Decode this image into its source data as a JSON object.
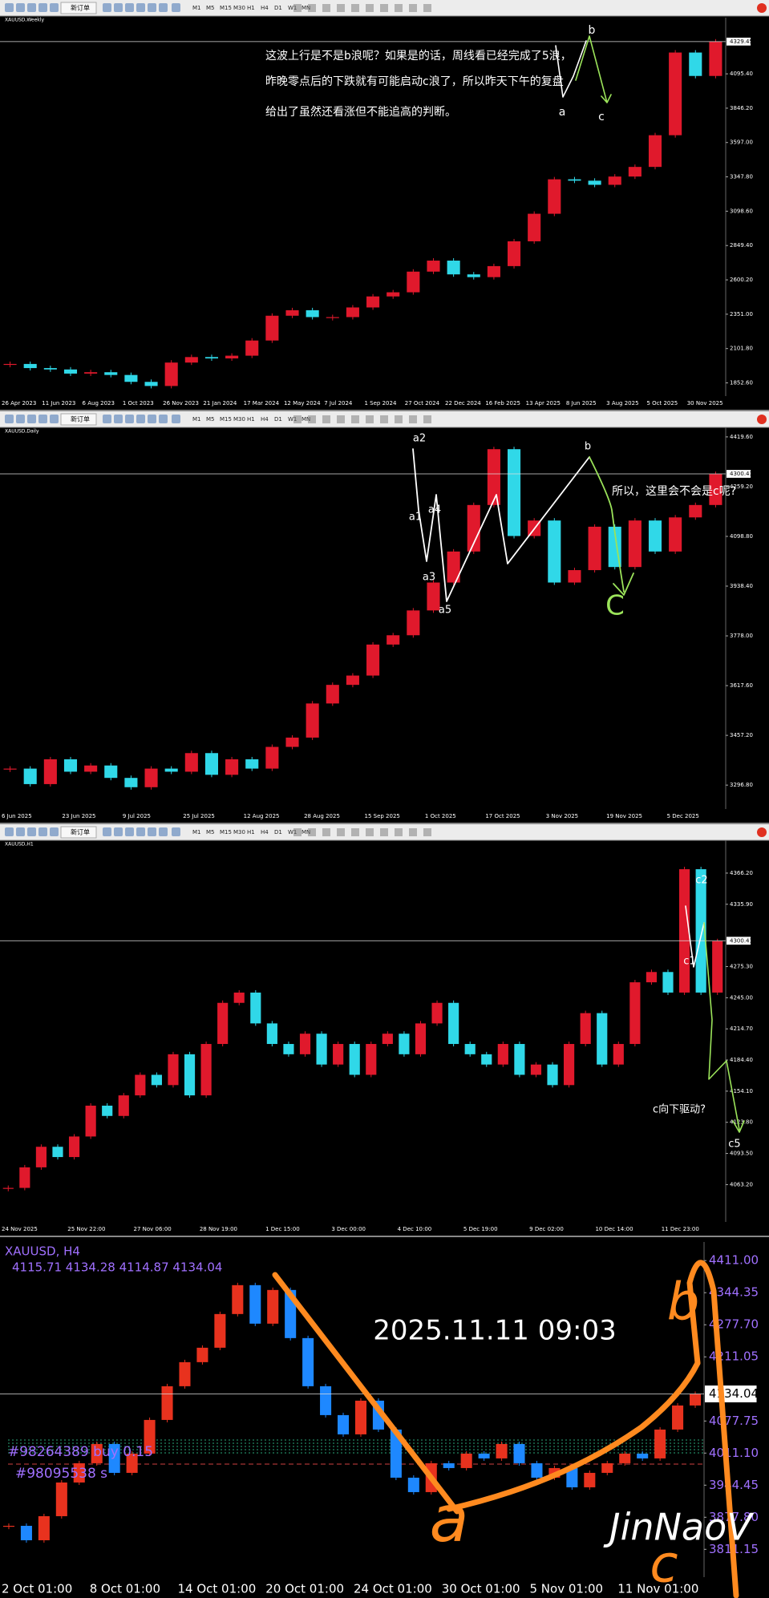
{
  "toolbar": {
    "new_order": "新订单",
    "timeframes": [
      "M1",
      "M5",
      "M15",
      "M30",
      "H1",
      "H4",
      "D1",
      "W1",
      "MN"
    ]
  },
  "chart_data": [
    {
      "type": "candlestick",
      "title": "XAUUSD,Weekly",
      "up_color": "#e0192c",
      "down_color": "#30d8e8",
      "categories": [
        "26 Apr 2023",
        null,
        "11 Jun 2023",
        null,
        "6 Aug 2023",
        null,
        "1 Oct 2023",
        null,
        "26 Nov 2023",
        null,
        "21 Jan 2024",
        null,
        "17 Mar 2024",
        null,
        "12 May 2024",
        null,
        "7 Jul 2024",
        null,
        "1 Sep 2024",
        null,
        "27 Oct 2024",
        null,
        "22 Dec 2024",
        null,
        "16 Feb 2025",
        null,
        "13 Apr 2025",
        null,
        "8 Jun 2025",
        null,
        "3 Aug 2025",
        null,
        "5 Oct 2025",
        null,
        "30 Nov 2025",
        null
      ],
      "values": [
        1990,
        1960,
        1950,
        1920,
        1930,
        1910,
        1860,
        1830,
        2000,
        2040,
        2030,
        2050,
        2160,
        2340,
        2380,
        2330,
        2330,
        2400,
        2480,
        2510,
        2660,
        2740,
        2640,
        2620,
        2700,
        2880,
        3080,
        3330,
        3320,
        3290,
        3350,
        3420,
        3650,
        4250,
        4080,
        4330
      ],
      "ylim": [
        1780,
        4480
      ],
      "yticks": [
        {
          "value": 1852.6,
          "label": "1852.60"
        },
        {
          "value": 2101.8,
          "label": "2101.80"
        },
        {
          "value": 2351,
          "label": "2351.00"
        },
        {
          "value": 2600.2,
          "label": "2600.20"
        },
        {
          "value": 2849.4,
          "label": "2849.40"
        },
        {
          "value": 3098.6,
          "label": "3098.60"
        },
        {
          "value": 3347.8,
          "label": "3347.80"
        },
        {
          "value": 3597,
          "label": "3597.00"
        },
        {
          "value": 3846.2,
          "label": "3846.20"
        },
        {
          "value": 4095.4,
          "label": "4095.40"
        }
      ],
      "price_line": {
        "value": 4329.45,
        "label": "4329.45"
      },
      "annotations": [
        "这波上行是不是b浪呢？如果是的话，周线看已经完成了5浪，",
        "昨晚零点后的下跌就有可能启动c浪了，所以昨天下午的复盘",
        "给出了虽然还看涨但不能追高的判断。",
        "a",
        "b",
        "c"
      ]
    },
    {
      "type": "candlestick",
      "title": "XAUUSD,Daily",
      "up_color": "#e0192c",
      "down_color": "#30d8e8",
      "categories": [
        "6 Jun 2025",
        null,
        null,
        "23 Jun 2025",
        null,
        null,
        "9 Jul 2025",
        null,
        null,
        "25 Jul 2025",
        null,
        null,
        "12 Aug 2025",
        null,
        null,
        "28 Aug 2025",
        null,
        null,
        "15 Sep 2025",
        null,
        null,
        "1 Oct 2025",
        null,
        null,
        "17 Oct 2025",
        null,
        null,
        "3 Nov 2025",
        null,
        null,
        "19 Nov 2025",
        null,
        null,
        "5 Dec 2025",
        null,
        null
      ],
      "values": [
        3350,
        3300,
        3380,
        3340,
        3360,
        3320,
        3290,
        3350,
        3340,
        3400,
        3330,
        3380,
        3350,
        3420,
        3450,
        3560,
        3620,
        3650,
        3750,
        3780,
        3860,
        3950,
        4050,
        4200,
        4380,
        4100,
        4150,
        3950,
        3990,
        4130,
        4000,
        4150,
        4050,
        4160,
        4200,
        4300
      ],
      "ylim": [
        3230,
        4440
      ],
      "yticks": [
        {
          "value": 3296.8,
          "label": "3296.80"
        },
        {
          "value": 3457.2,
          "label": "3457.20"
        },
        {
          "value": 3617.6,
          "label": "3617.60"
        },
        {
          "value": 3778,
          "label": "3778.00"
        },
        {
          "value": 3938.4,
          "label": "3938.40"
        },
        {
          "value": 4098.8,
          "label": "4098.80"
        },
        {
          "value": 4259.2,
          "label": "4259.20"
        },
        {
          "value": 4419.6,
          "label": "4419.60"
        }
      ],
      "price_line": {
        "value": 4300.41,
        "label": "4300.41"
      },
      "annotations": [
        "a2",
        "a1",
        "a4",
        "a3",
        "a5",
        "b",
        "所以，这里会不会是c呢?",
        "C"
      ]
    },
    {
      "type": "candlestick",
      "title": "XAUUSD,H1",
      "up_color": "#e0192c",
      "down_color": "#30d8e8",
      "categories": [
        "24 Nov 2025",
        null,
        null,
        null,
        "25 Nov 22:00",
        null,
        null,
        null,
        "27 Nov 06:00",
        null,
        null,
        null,
        "28 Nov 19:00",
        null,
        null,
        null,
        "1 Dec 15:00",
        null,
        null,
        null,
        "3 Dec 00:00",
        null,
        null,
        null,
        "4 Dec 10:00",
        null,
        null,
        null,
        "5 Dec 19:00",
        null,
        null,
        null,
        "9 Dec 02:00",
        null,
        null,
        null,
        "10 Dec 14:00",
        null,
        null,
        null,
        "11 Dec 23:00",
        null,
        null,
        null
      ],
      "values": [
        4060,
        4080,
        4100,
        4090,
        4110,
        4140,
        4130,
        4150,
        4170,
        4160,
        4190,
        4150,
        4200,
        4240,
        4250,
        4220,
        4200,
        4190,
        4210,
        4180,
        4200,
        4170,
        4200,
        4210,
        4190,
        4220,
        4240,
        4200,
        4190,
        4180,
        4200,
        4170,
        4180,
        4160,
        4200,
        4230,
        4180,
        4200,
        4260,
        4270,
        4250,
        4370,
        4250,
        4300
      ],
      "ylim": [
        4030,
        4395
      ],
      "yticks": [
        {
          "value": 4063.2,
          "label": "4063.20"
        },
        {
          "value": 4093.5,
          "label": "4093.50"
        },
        {
          "value": 4123.8,
          "label": "4123.80"
        },
        {
          "value": 4154.1,
          "label": "4154.10"
        },
        {
          "value": 4184.4,
          "label": "4184.40"
        },
        {
          "value": 4214.7,
          "label": "4214.70"
        },
        {
          "value": 4245,
          "label": "4245.00"
        },
        {
          "value": 4275.3,
          "label": "4275.30"
        },
        {
          "value": 4335.9,
          "label": "4335.90"
        },
        {
          "value": 4366.2,
          "label": "4366.20"
        }
      ],
      "price_line": {
        "value": 4300.41,
        "label": "4300.41"
      },
      "annotations": [
        "c2",
        "c1",
        "c向下驱动?",
        "c5"
      ]
    },
    {
      "type": "candlestick",
      "title": "XAUUSD, H4",
      "subtitle": "4115.71 4134.28 4114.87 4134.04",
      "up_color": "#e8321e",
      "down_color": "#1e88ff",
      "categories": [
        "2 Oct 01:00",
        null,
        null,
        null,
        null,
        "8 Oct 01:00",
        null,
        null,
        null,
        null,
        "14 Oct 01:00",
        null,
        null,
        null,
        null,
        "20 Oct 01:00",
        null,
        null,
        null,
        null,
        "24 Oct 01:00",
        null,
        null,
        null,
        null,
        "30 Oct 01:00",
        null,
        null,
        null,
        null,
        "5 Nov 01:00",
        null,
        null,
        null,
        null,
        "11 Nov 01:00",
        null,
        null,
        null,
        null
      ],
      "values": [
        3860,
        3830,
        3880,
        3950,
        3990,
        4030,
        3970,
        4010,
        4080,
        4150,
        4200,
        4230,
        4300,
        4360,
        4280,
        4350,
        4250,
        4150,
        4090,
        4050,
        4120,
        4060,
        3960,
        3930,
        3990,
        3980,
        4010,
        4000,
        4030,
        3990,
        3960,
        3980,
        3940,
        3970,
        3990,
        4010,
        4000,
        4060,
        4110,
        4134.04
      ],
      "ylim": [
        3760,
        4443
      ],
      "yticks": [
        {
          "value": 4411,
          "label": "4411.00"
        },
        {
          "value": 4344.35,
          "label": "4344.35"
        },
        {
          "value": 4277.7,
          "label": "4277.70"
        },
        {
          "value": 4211.05,
          "label": "4211.05"
        },
        {
          "value": 4077.75,
          "label": "4077.75"
        },
        {
          "value": 4011.1,
          "label": "4011.10"
        },
        {
          "value": 3944.45,
          "label": "3944.45"
        },
        {
          "value": 3877.8,
          "label": "3877.80"
        },
        {
          "value": 3811.15,
          "label": "3811.15"
        }
      ],
      "price_line": {
        "value": 4134.04,
        "label": "4134.04"
      },
      "watermark": "2025.11.11  09:03",
      "orders": [
        "#98264389 buy 0.15",
        "#98095538 s"
      ],
      "signature": "JinNaoV",
      "annotations": [
        "a",
        "b",
        "c"
      ]
    }
  ]
}
